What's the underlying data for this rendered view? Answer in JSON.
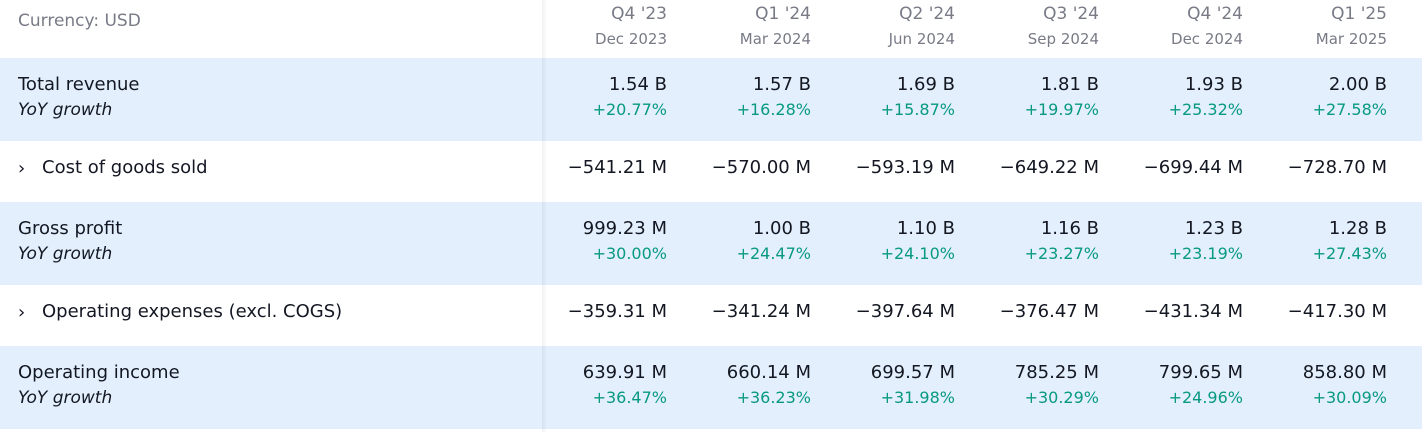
{
  "currency_label": "Currency: USD",
  "columns": [
    {
      "quarter": "Q4 '23",
      "date": "Dec 2023"
    },
    {
      "quarter": "Q1 '24",
      "date": "Mar 2024"
    },
    {
      "quarter": "Q2 '24",
      "date": "Jun 2024"
    },
    {
      "quarter": "Q3 '24",
      "date": "Sep 2024"
    },
    {
      "quarter": "Q4 '24",
      "date": "Dec 2024"
    },
    {
      "quarter": "Q1 '25",
      "date": "Mar 2025"
    }
  ],
  "rows": {
    "total_revenue": {
      "label": "Total revenue",
      "sub_label": "YoY growth",
      "values": [
        "1.54 B",
        "1.57 B",
        "1.69 B",
        "1.81 B",
        "1.93 B",
        "2.00 B"
      ],
      "growth": [
        "+20.77%",
        "+16.28%",
        "+15.87%",
        "+19.97%",
        "+25.32%",
        "+27.58%"
      ]
    },
    "cogs": {
      "label": "Cost of goods sold",
      "values": [
        "−541.21 M",
        "−570.00 M",
        "−593.19 M",
        "−649.22 M",
        "−699.44 M",
        "−728.70 M"
      ]
    },
    "gross_profit": {
      "label": "Gross profit",
      "sub_label": "YoY growth",
      "values": [
        "999.23 M",
        "1.00 B",
        "1.10 B",
        "1.16 B",
        "1.23 B",
        "1.28 B"
      ],
      "growth": [
        "+30.00%",
        "+24.47%",
        "+24.10%",
        "+23.27%",
        "+23.19%",
        "+27.43%"
      ]
    },
    "opex": {
      "label": "Operating expenses (excl. COGS)",
      "values": [
        "−359.31 M",
        "−341.24 M",
        "−397.64 M",
        "−376.47 M",
        "−431.34 M",
        "−417.30 M"
      ]
    },
    "operating_income": {
      "label": "Operating income",
      "sub_label": "YoY growth",
      "values": [
        "639.91 M",
        "660.14 M",
        "699.57 M",
        "785.25 M",
        "799.65 M",
        "858.80 M"
      ],
      "growth": [
        "+36.47%",
        "+36.23%",
        "+31.98%",
        "+30.29%",
        "+24.96%",
        "+30.09%"
      ]
    }
  },
  "chevron_glyph": "›",
  "colors": {
    "shaded_row": "#e3effd",
    "positive": "#089981",
    "muted": "#787b86",
    "text": "#131722"
  },
  "icons": [
    "chevron-right-icon"
  ]
}
